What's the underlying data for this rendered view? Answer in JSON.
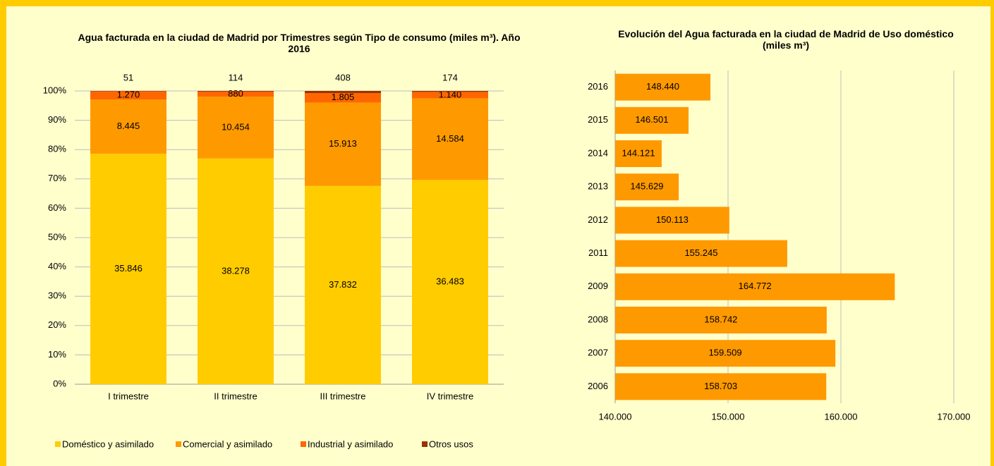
{
  "chart_data": [
    {
      "type": "bar",
      "stacking": "percent",
      "title": "Agua facturada en la ciudad de Madrid por Trimestres según Tipo de consumo  (miles m³). Año 2016",
      "categories": [
        "I trimestre",
        "II trimestre",
        "III trimestre",
        "IV trimestre"
      ],
      "series": [
        {
          "name": "Doméstico y asimilado",
          "color": "#ffcc00",
          "values": [
            35846,
            38278,
            37832,
            36483
          ],
          "value_labels": [
            "35.846",
            "38.278",
            "37.832",
            "36.483"
          ]
        },
        {
          "name": "Comercial y asimilado",
          "color": "#ff9900",
          "values": [
            8445,
            10454,
            15913,
            14584
          ],
          "value_labels": [
            "8.445",
            "10.454",
            "15.913",
            "14.584"
          ]
        },
        {
          "name": "Industrial y asimilado",
          "color": "#ff6600",
          "values": [
            1270,
            880,
            1805,
            1140
          ],
          "value_labels": [
            "1.270",
            "880",
            "1.805",
            "1.140"
          ]
        },
        {
          "name": "Otros usos",
          "color": "#993300",
          "values": [
            51,
            114,
            408,
            174
          ]
        }
      ],
      "ylim": [
        0,
        100
      ],
      "yticks": [
        {
          "value": 0,
          "label": "0%"
        },
        {
          "value": 10,
          "label": "10%"
        },
        {
          "value": 20,
          "label": "20%"
        },
        {
          "value": 30,
          "label": "30%"
        },
        {
          "value": 40,
          "label": "40%"
        },
        {
          "value": 50,
          "label": "50%"
        },
        {
          "value": 60,
          "label": "60%"
        },
        {
          "value": 70,
          "label": "70%"
        },
        {
          "value": 80,
          "label": "80%"
        },
        {
          "value": 90,
          "label": "90%"
        },
        {
          "value": 100,
          "label": "100%"
        }
      ],
      "grid": true,
      "legend": "bottom"
    },
    {
      "type": "hbar",
      "title": "Evolución del Agua facturada en la ciudad de Madrid de Uso doméstico (miles m³)",
      "categories": [
        "2016",
        "2015",
        "2014",
        "2013",
        "2012",
        "2011",
        "2009",
        "2008",
        "2007",
        "2006"
      ],
      "values": [
        148440,
        146501,
        144121,
        145629,
        150113,
        155245,
        164772,
        158742,
        159509,
        158703
      ],
      "value_labels": [
        "148.440",
        "146.501",
        "144.121",
        "145.629",
        "150.113",
        "155.245",
        "164.772",
        "158.742",
        "159.509",
        "158.703"
      ],
      "color": "#ff9900",
      "xlim": [
        140000,
        170000
      ],
      "xticks": [
        {
          "value": 140000,
          "label": "140.000"
        },
        {
          "value": 150000,
          "label": "150.000"
        },
        {
          "value": 160000,
          "label": "160.000"
        },
        {
          "value": 170000,
          "label": "170.000"
        }
      ],
      "grid": true
    }
  ]
}
